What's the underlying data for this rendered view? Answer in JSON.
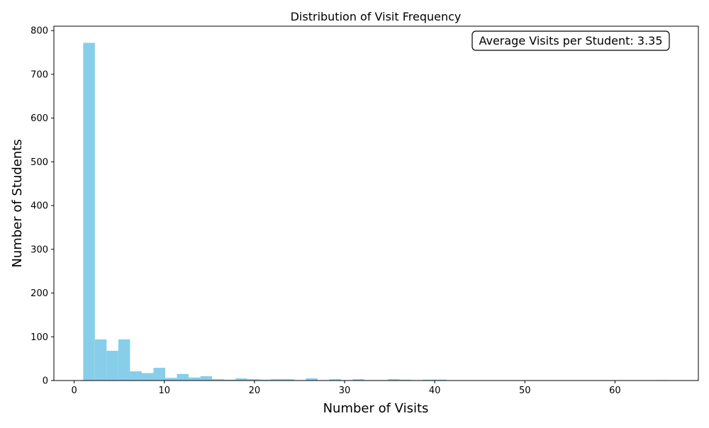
{
  "chart_data": {
    "type": "bar",
    "title": "Distribution of Visit Frequency",
    "xlabel": "Number of Visits",
    "ylabel": "Number of Students",
    "xlim": [
      -2.25,
      69.25
    ],
    "ylim": [
      0,
      810
    ],
    "x_ticks": [
      0,
      10,
      20,
      30,
      40,
      50,
      60
    ],
    "y_ticks": [
      0,
      100,
      200,
      300,
      400,
      500,
      600,
      700,
      800
    ],
    "bar_color": "#87ceeb",
    "bin_width": 1.3,
    "bins": [
      {
        "x0": 1.0,
        "value": 772
      },
      {
        "x0": 2.3,
        "value": 94
      },
      {
        "x0": 3.6,
        "value": 68
      },
      {
        "x0": 4.9,
        "value": 94
      },
      {
        "x0": 6.2,
        "value": 21
      },
      {
        "x0": 7.5,
        "value": 17
      },
      {
        "x0": 8.8,
        "value": 29
      },
      {
        "x0": 10.1,
        "value": 6
      },
      {
        "x0": 11.4,
        "value": 15
      },
      {
        "x0": 12.7,
        "value": 7
      },
      {
        "x0": 14.0,
        "value": 10
      },
      {
        "x0": 15.3,
        "value": 3
      },
      {
        "x0": 16.6,
        "value": 2
      },
      {
        "x0": 17.9,
        "value": 5
      },
      {
        "x0": 19.2,
        "value": 3
      },
      {
        "x0": 20.5,
        "value": 2
      },
      {
        "x0": 21.8,
        "value": 3
      },
      {
        "x0": 23.1,
        "value": 3
      },
      {
        "x0": 24.4,
        "value": 1
      },
      {
        "x0": 25.7,
        "value": 5
      },
      {
        "x0": 27.0,
        "value": 1
      },
      {
        "x0": 28.3,
        "value": 3
      },
      {
        "x0": 29.6,
        "value": 1
      },
      {
        "x0": 30.9,
        "value": 3
      },
      {
        "x0": 32.2,
        "value": 1
      },
      {
        "x0": 33.5,
        "value": 1
      },
      {
        "x0": 34.8,
        "value": 3
      },
      {
        "x0": 36.1,
        "value": 2
      },
      {
        "x0": 37.4,
        "value": 1
      },
      {
        "x0": 38.7,
        "value": 2
      },
      {
        "x0": 40.0,
        "value": 2
      },
      {
        "x0": 64.7,
        "value": 1
      }
    ],
    "annotation": "Average Visits per Student: 3.35",
    "annotation_position": "top-right",
    "grid": false,
    "legend": false
  }
}
